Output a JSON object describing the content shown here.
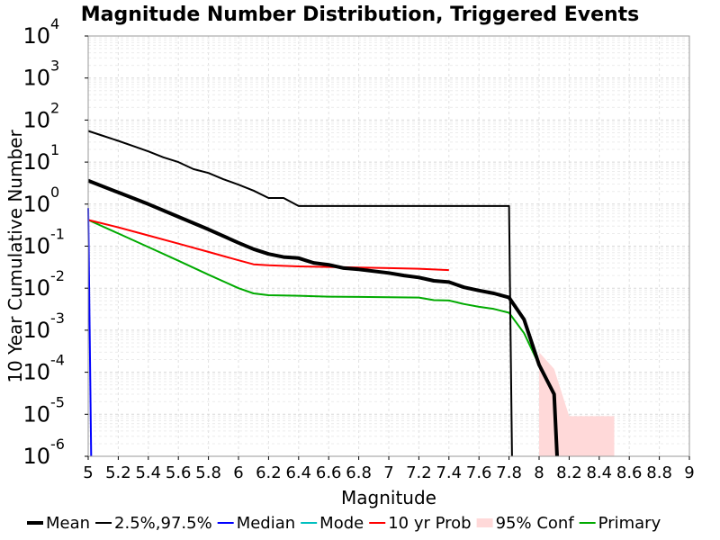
{
  "chart_data": {
    "type": "line",
    "title": "Magnitude Number Distribution, Triggered Events",
    "xlabel": "Magnitude",
    "ylabel": "10 Year Cumulative Number",
    "xlim": [
      5,
      9
    ],
    "ylim": [
      1e-06,
      10000.0
    ],
    "y_scale": "log",
    "grid": true,
    "legend_position": "bottom",
    "x_ticks": [
      5,
      5.2,
      5.4,
      5.6,
      5.8,
      6,
      6.2,
      6.4,
      6.6,
      6.8,
      7,
      7.2,
      7.4,
      7.6,
      7.8,
      8,
      8.2,
      8.4,
      8.6,
      8.8,
      9
    ],
    "x_tick_labels": [
      "5",
      "5.2",
      "5.4",
      "5.6",
      "5.8",
      "6",
      "6.2",
      "6.4",
      "6.6",
      "6.8",
      "7",
      "7.2",
      "7.4",
      "7.6",
      "7.8",
      "8",
      "8.2",
      "8.4",
      "8.6",
      "8.8",
      "9"
    ],
    "y_ticks": [
      {
        "value": 1e-06,
        "base": "10",
        "exp": "-6"
      },
      {
        "value": 1e-05,
        "base": "10",
        "exp": "-5"
      },
      {
        "value": 0.0001,
        "base": "10",
        "exp": "-4"
      },
      {
        "value": 0.001,
        "base": "10",
        "exp": "-3"
      },
      {
        "value": 0.01,
        "base": "10",
        "exp": "-2"
      },
      {
        "value": 0.1,
        "base": "10",
        "exp": "-1"
      },
      {
        "value": 1,
        "base": "10",
        "exp": "0"
      },
      {
        "value": 10,
        "base": "10",
        "exp": "1"
      },
      {
        "value": 100,
        "base": "10",
        "exp": "2"
      },
      {
        "value": 1000,
        "base": "10",
        "exp": "3"
      },
      {
        "value": 10000,
        "base": "10",
        "exp": "4"
      }
    ],
    "series": [
      {
        "name": "Mean",
        "color": "#000000",
        "style": "line-thick",
        "x": [
          5.0,
          5.2,
          5.4,
          5.6,
          5.8,
          6.0,
          6.1,
          6.2,
          6.3,
          6.4,
          6.5,
          6.6,
          6.7,
          6.8,
          7.0,
          7.1,
          7.2,
          7.3,
          7.4,
          7.5,
          7.6,
          7.7,
          7.8,
          7.9,
          8.0,
          8.1,
          8.12
        ],
        "y": [
          3.6,
          1.9,
          1.0,
          0.5,
          0.25,
          0.12,
          0.085,
          0.065,
          0.055,
          0.052,
          0.04,
          0.036,
          0.03,
          0.028,
          0.023,
          0.02,
          0.018,
          0.015,
          0.014,
          0.0105,
          0.0088,
          0.0075,
          0.006,
          0.0018,
          0.00015,
          3e-05,
          1e-06
        ]
      },
      {
        "name": "2.5%,97.5%",
        "color": "#000000",
        "style": "line",
        "x": [
          5.0,
          5.1,
          5.2,
          5.3,
          5.4,
          5.5,
          5.6,
          5.7,
          5.8,
          5.9,
          6.0,
          6.1,
          6.2,
          6.3,
          6.4,
          6.5,
          6.6,
          6.7,
          6.8,
          6.9,
          7.0,
          7.2,
          7.4,
          7.6,
          7.8,
          7.82
        ],
        "y": [
          55,
          42,
          32,
          24,
          18,
          13,
          10,
          6.8,
          5.5,
          3.9,
          2.9,
          2.1,
          1.4,
          1.4,
          0.9,
          0.9,
          0.9,
          0.9,
          0.9,
          0.9,
          0.9,
          0.9,
          0.9,
          0.9,
          0.9,
          1e-06
        ]
      },
      {
        "name": "Median",
        "color": "#0000ff",
        "style": "line",
        "x": [
          5.0,
          5.02
        ],
        "y": [
          0.8,
          1e-06
        ]
      },
      {
        "name": "Mode",
        "color": "#00bfbf",
        "style": "line",
        "x": [],
        "y": []
      },
      {
        "name": "10 yr Prob",
        "color": "#ff0000",
        "style": "line",
        "x": [
          5.0,
          5.2,
          5.4,
          5.6,
          5.8,
          6.0,
          6.1,
          6.2,
          6.4,
          6.6,
          6.8,
          7.0,
          7.2,
          7.4
        ],
        "y": [
          0.42,
          0.28,
          0.18,
          0.115,
          0.073,
          0.046,
          0.037,
          0.035,
          0.033,
          0.032,
          0.031,
          0.03,
          0.029,
          0.027
        ]
      },
      {
        "name": "95% Conf",
        "color": "#ffd9d9",
        "style": "band",
        "x": [
          8.0,
          8.1,
          8.2,
          8.4,
          8.5
        ],
        "y": [
          0.0003,
          0.00012,
          9e-06,
          9e-06,
          9e-06
        ]
      },
      {
        "name": "Primary",
        "color": "#00aa00",
        "style": "line",
        "x": [
          5.0,
          5.2,
          5.4,
          5.6,
          5.8,
          6.0,
          6.1,
          6.2,
          6.4,
          6.6,
          6.8,
          7.0,
          7.2,
          7.3,
          7.4,
          7.5,
          7.6,
          7.7,
          7.8,
          7.9,
          8.0,
          8.1
        ],
        "y": [
          0.42,
          0.2,
          0.095,
          0.045,
          0.021,
          0.01,
          0.0075,
          0.0068,
          0.0066,
          0.0063,
          0.0062,
          0.0061,
          0.006,
          0.0052,
          0.0051,
          0.0042,
          0.0036,
          0.0032,
          0.0026,
          0.00085,
          0.00015,
          3e-05
        ]
      }
    ]
  }
}
